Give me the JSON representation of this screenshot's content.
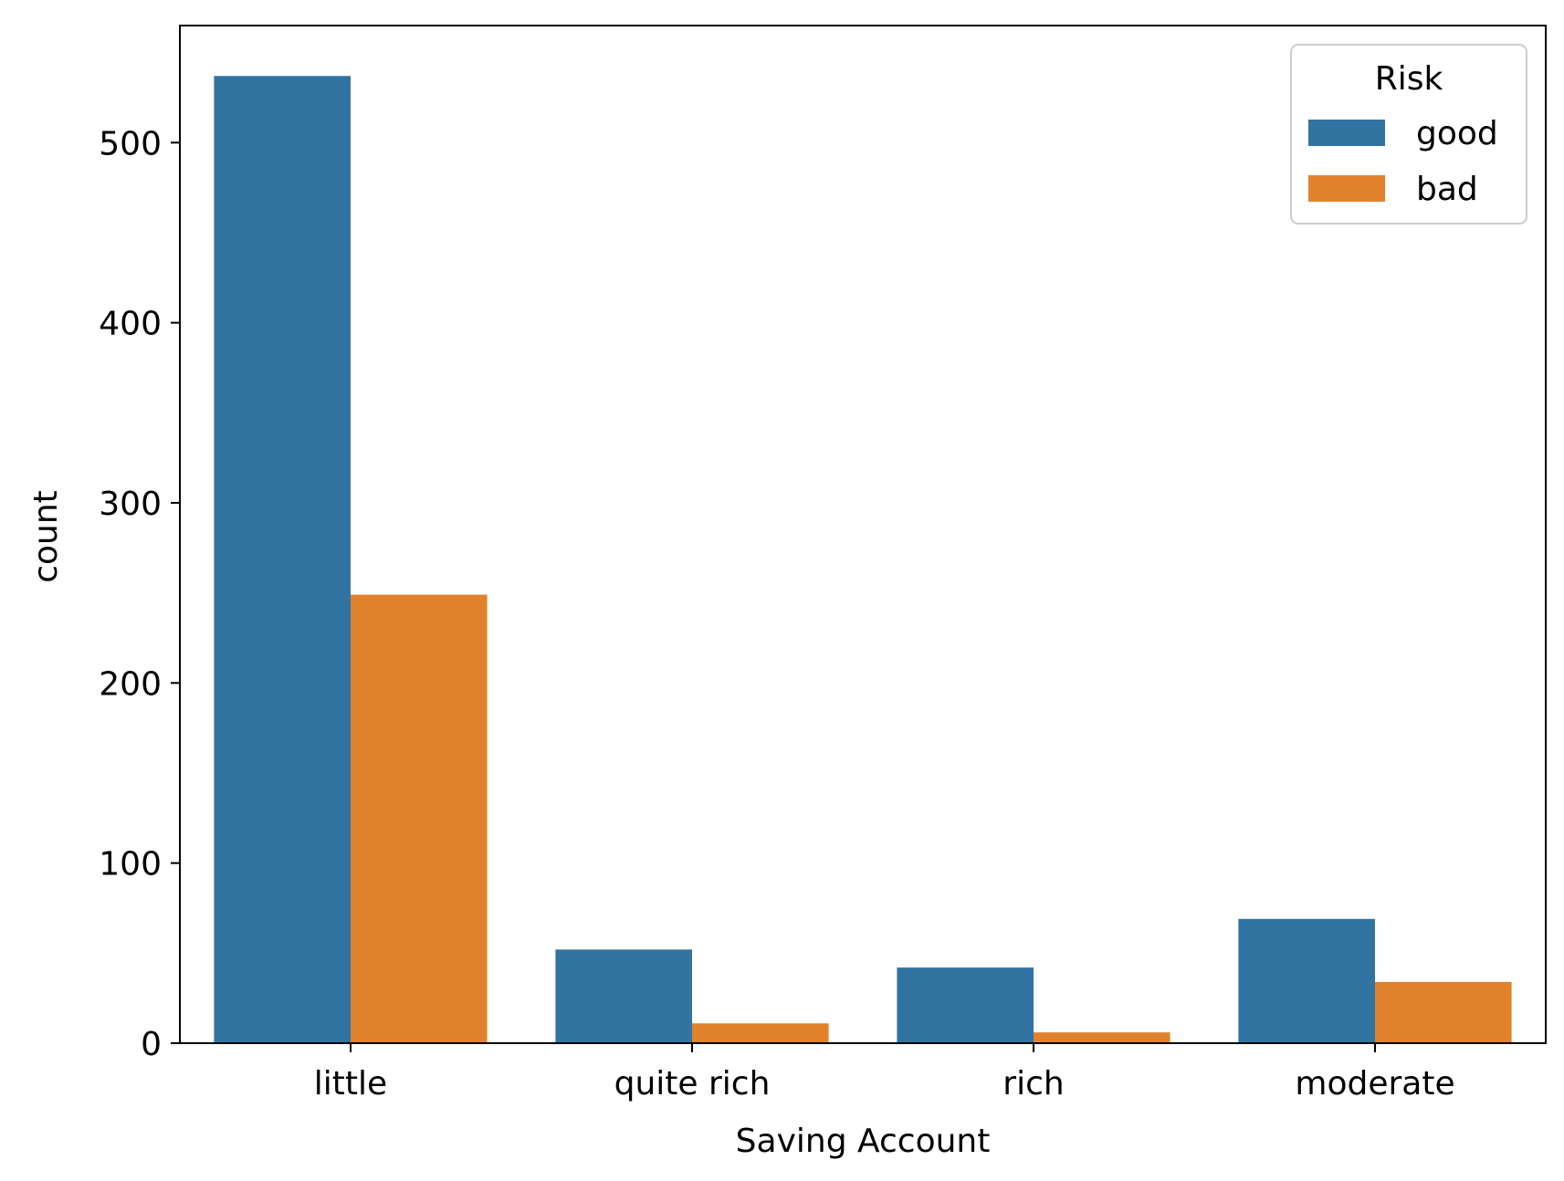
{
  "chart_data": {
    "type": "bar",
    "title": "",
    "xlabel": "Saving Account",
    "ylabel": "count",
    "categories": [
      "little",
      "quite rich",
      "rich",
      "moderate"
    ],
    "series": [
      {
        "name": "good",
        "color": "#3274a1",
        "values": [
          537,
          52,
          42,
          69
        ]
      },
      {
        "name": "bad",
        "color": "#e1812c",
        "values": [
          249,
          11,
          6,
          34
        ]
      }
    ],
    "ylim": [
      0,
      565
    ],
    "yticks": [
      0,
      100,
      200,
      300,
      400,
      500
    ],
    "legend": {
      "title": "Risk",
      "position": "top-right"
    },
    "grid": false
  }
}
